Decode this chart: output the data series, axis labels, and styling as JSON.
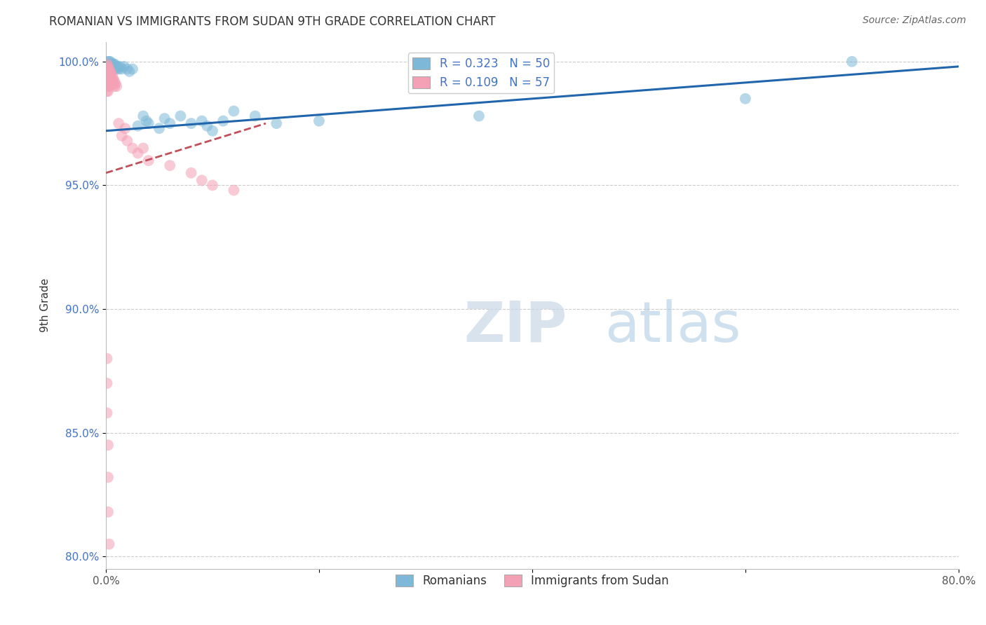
{
  "title": "ROMANIAN VS IMMIGRANTS FROM SUDAN 9TH GRADE CORRELATION CHART",
  "source": "Source: ZipAtlas.com",
  "ylabel": "9th Grade",
  "xlabel": "",
  "xlim": [
    0.0,
    0.8
  ],
  "ylim": [
    0.795,
    1.008
  ],
  "xticks": [
    0.0,
    0.2,
    0.4,
    0.6,
    0.8
  ],
  "xtick_labels": [
    "0.0%",
    "",
    "",
    "",
    "80.0%"
  ],
  "yticks": [
    0.8,
    0.85,
    0.9,
    0.95,
    1.0
  ],
  "ytick_labels": [
    "80.0%",
    "85.0%",
    "90.0%",
    "95.0%",
    "100.0%"
  ],
  "legend_blue_label": "Romanians",
  "legend_pink_label": "Immigrants from Sudan",
  "R_blue": 0.323,
  "N_blue": 50,
  "R_pink": 0.109,
  "N_pink": 57,
  "blue_color": "#7db8d8",
  "pink_color": "#f4a0b5",
  "blue_line_color": "#2166ac",
  "pink_line_color": "#c0505a",
  "blue_line_x0": 0.0,
  "blue_line_y0": 0.972,
  "blue_line_x1": 0.8,
  "blue_line_y1": 0.998,
  "pink_line_x0": 0.0,
  "pink_line_y0": 0.955,
  "pink_line_x1": 0.15,
  "pink_line_y1": 0.975,
  "blue_scatter_x": [
    0.001,
    0.001,
    0.002,
    0.002,
    0.002,
    0.003,
    0.003,
    0.003,
    0.004,
    0.004,
    0.004,
    0.005,
    0.005,
    0.006,
    0.006,
    0.007,
    0.007,
    0.008,
    0.008,
    0.009,
    0.01,
    0.01,
    0.011,
    0.012,
    0.013,
    0.015,
    0.017,
    0.02,
    0.022,
    0.025,
    0.03,
    0.035,
    0.038,
    0.04,
    0.05,
    0.055,
    0.06,
    0.07,
    0.08,
    0.09,
    0.095,
    0.1,
    0.11,
    0.12,
    0.14,
    0.16,
    0.2,
    0.35,
    0.6,
    0.7
  ],
  "blue_scatter_y": [
    0.999,
    0.998,
    1.0,
    0.998,
    0.999,
    1.0,
    0.999,
    0.998,
    0.999,
    1.0,
    0.998,
    0.999,
    0.998,
    0.999,
    0.998,
    0.999,
    0.998,
    0.997,
    0.999,
    0.998,
    0.998,
    0.997,
    0.998,
    0.997,
    0.998,
    0.997,
    0.998,
    0.997,
    0.996,
    0.997,
    0.974,
    0.978,
    0.976,
    0.975,
    0.973,
    0.977,
    0.975,
    0.978,
    0.975,
    0.976,
    0.974,
    0.972,
    0.976,
    0.98,
    0.978,
    0.975,
    0.976,
    0.978,
    0.985,
    1.0
  ],
  "pink_scatter_x": [
    0.001,
    0.001,
    0.001,
    0.001,
    0.001,
    0.001,
    0.001,
    0.001,
    0.001,
    0.001,
    0.002,
    0.002,
    0.002,
    0.002,
    0.002,
    0.002,
    0.002,
    0.002,
    0.003,
    0.003,
    0.003,
    0.003,
    0.003,
    0.004,
    0.004,
    0.004,
    0.005,
    0.005,
    0.005,
    0.006,
    0.006,
    0.007,
    0.007,
    0.008,
    0.008,
    0.009,
    0.01,
    0.012,
    0.015,
    0.018,
    0.02,
    0.025,
    0.03,
    0.035,
    0.04,
    0.06,
    0.08,
    0.09,
    0.1,
    0.12,
    0.001,
    0.001,
    0.001,
    0.002,
    0.002,
    0.002,
    0.003
  ],
  "pink_scatter_y": [
    0.999,
    0.998,
    0.997,
    0.996,
    0.995,
    0.994,
    0.993,
    0.991,
    0.99,
    0.988,
    0.998,
    0.997,
    0.996,
    0.995,
    0.993,
    0.992,
    0.99,
    0.988,
    0.997,
    0.996,
    0.994,
    0.992,
    0.99,
    0.996,
    0.994,
    0.992,
    0.995,
    0.993,
    0.991,
    0.994,
    0.992,
    0.993,
    0.991,
    0.992,
    0.99,
    0.991,
    0.99,
    0.975,
    0.97,
    0.973,
    0.968,
    0.965,
    0.963,
    0.965,
    0.96,
    0.958,
    0.955,
    0.952,
    0.95,
    0.948,
    0.88,
    0.87,
    0.858,
    0.845,
    0.832,
    0.818,
    0.805
  ]
}
